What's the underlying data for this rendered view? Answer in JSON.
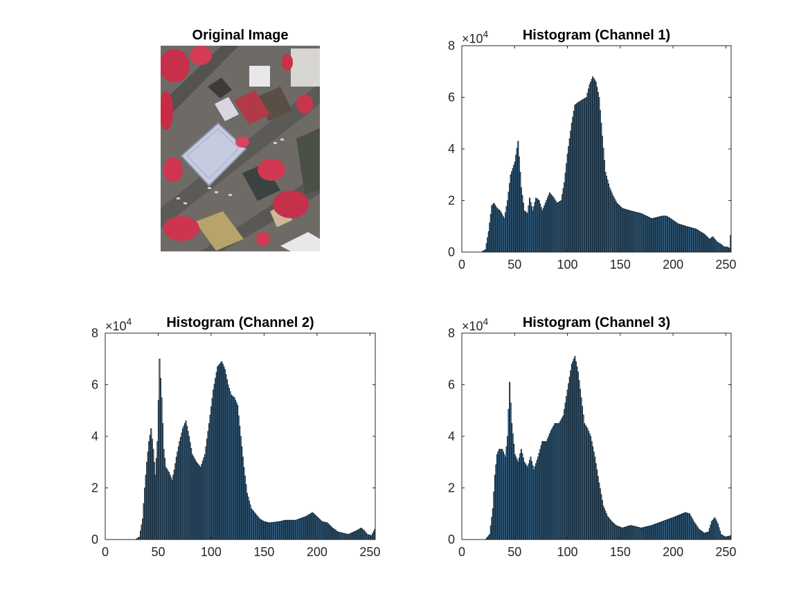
{
  "image_panel": {
    "title": "Original Image"
  },
  "chart_data": [
    {
      "type": "bar",
      "title": "Histogram (Channel 1)",
      "xlabel": "",
      "ylabel": "",
      "xlim": [
        0,
        255
      ],
      "ylim": [
        0,
        80000
      ],
      "xticks": [
        0,
        50,
        100,
        150,
        200,
        250
      ],
      "xtick_labels": [
        "0",
        "50",
        "100",
        "150",
        "200",
        "250"
      ],
      "yticks": [
        0,
        20000,
        40000,
        60000,
        80000
      ],
      "ytick_labels": [
        "0",
        "2",
        "4",
        "6",
        "8"
      ],
      "y_exponent": {
        "base": "×10",
        "power": "4"
      },
      "grid": false,
      "bar_color": "#3a6a8f",
      "edge_color": "#000000",
      "profile": [
        [
          0,
          0
        ],
        [
          18,
          0
        ],
        [
          22,
          1000
        ],
        [
          25,
          8000
        ],
        [
          28,
          18000
        ],
        [
          30,
          19000
        ],
        [
          33,
          17000
        ],
        [
          36,
          16000
        ],
        [
          40,
          13000
        ],
        [
          43,
          20000
        ],
        [
          46,
          30000
        ],
        [
          50,
          35000
        ],
        [
          53,
          43000
        ],
        [
          56,
          25000
        ],
        [
          59,
          16000
        ],
        [
          62,
          15000
        ],
        [
          64,
          21000
        ],
        [
          67,
          16000
        ],
        [
          70,
          21000
        ],
        [
          73,
          20000
        ],
        [
          76,
          16000
        ],
        [
          80,
          20000
        ],
        [
          83,
          23000
        ],
        [
          87,
          21000
        ],
        [
          90,
          19000
        ],
        [
          94,
          20000
        ],
        [
          97,
          27000
        ],
        [
          100,
          38000
        ],
        [
          104,
          50000
        ],
        [
          107,
          57000
        ],
        [
          110,
          58000
        ],
        [
          114,
          59000
        ],
        [
          118,
          60000
        ],
        [
          121,
          65000
        ],
        [
          124,
          68000
        ],
        [
          127,
          66000
        ],
        [
          130,
          60000
        ],
        [
          133,
          45000
        ],
        [
          136,
          31000
        ],
        [
          140,
          25000
        ],
        [
          143,
          22000
        ],
        [
          147,
          19000
        ],
        [
          152,
          17000
        ],
        [
          160,
          16000
        ],
        [
          170,
          15000
        ],
        [
          180,
          13000
        ],
        [
          190,
          14000
        ],
        [
          194,
          14000
        ],
        [
          198,
          13000
        ],
        [
          205,
          11000
        ],
        [
          213,
          10000
        ],
        [
          222,
          9000
        ],
        [
          230,
          7000
        ],
        [
          235,
          5000
        ],
        [
          238,
          6000
        ],
        [
          242,
          4000
        ],
        [
          246,
          3000
        ],
        [
          249,
          2000
        ],
        [
          252,
          2000
        ],
        [
          254,
          1500
        ],
        [
          255,
          6500
        ]
      ]
    },
    {
      "type": "bar",
      "title": "Histogram (Channel 2)",
      "xlabel": "",
      "ylabel": "",
      "xlim": [
        0,
        255
      ],
      "ylim": [
        0,
        80000
      ],
      "xticks": [
        0,
        50,
        100,
        150,
        200,
        250
      ],
      "xtick_labels": [
        "0",
        "50",
        "100",
        "150",
        "200",
        "250"
      ],
      "yticks": [
        0,
        20000,
        40000,
        60000,
        80000
      ],
      "ytick_labels": [
        "0",
        "2",
        "4",
        "6",
        "8"
      ],
      "y_exponent": {
        "base": "×10",
        "power": "4"
      },
      "grid": false,
      "bar_color": "#3a6a8f",
      "edge_color": "#000000",
      "profile": [
        [
          0,
          0
        ],
        [
          28,
          0
        ],
        [
          32,
          1000
        ],
        [
          35,
          8000
        ],
        [
          37,
          20000
        ],
        [
          39,
          30000
        ],
        [
          41,
          38000
        ],
        [
          43,
          43000
        ],
        [
          45,
          35000
        ],
        [
          47,
          25000
        ],
        [
          49,
          38000
        ],
        [
          51,
          70000
        ],
        [
          53,
          55000
        ],
        [
          55,
          35000
        ],
        [
          57,
          28000
        ],
        [
          60,
          26000
        ],
        [
          63,
          23000
        ],
        [
          65,
          27000
        ],
        [
          67,
          32000
        ],
        [
          70,
          38000
        ],
        [
          73,
          43000
        ],
        [
          76,
          46000
        ],
        [
          79,
          40000
        ],
        [
          82,
          33000
        ],
        [
          86,
          30000
        ],
        [
          90,
          28000
        ],
        [
          94,
          33000
        ],
        [
          98,
          45000
        ],
        [
          102,
          58000
        ],
        [
          106,
          67000
        ],
        [
          110,
          69000
        ],
        [
          113,
          66000
        ],
        [
          116,
          60000
        ],
        [
          119,
          56000
        ],
        [
          122,
          55000
        ],
        [
          125,
          52000
        ],
        [
          128,
          40000
        ],
        [
          131,
          28000
        ],
        [
          134,
          18000
        ],
        [
          138,
          12000
        ],
        [
          142,
          10000
        ],
        [
          146,
          8000
        ],
        [
          150,
          7000
        ],
        [
          155,
          6500
        ],
        [
          165,
          7000
        ],
        [
          170,
          7500
        ],
        [
          180,
          7500
        ],
        [
          190,
          9000
        ],
        [
          196,
          10500
        ],
        [
          200,
          9000
        ],
        [
          205,
          7000
        ],
        [
          210,
          6500
        ],
        [
          215,
          4500
        ],
        [
          220,
          3000
        ],
        [
          230,
          2000
        ],
        [
          238,
          3500
        ],
        [
          242,
          4500
        ],
        [
          245,
          3500
        ],
        [
          248,
          2000
        ],
        [
          252,
          1500
        ],
        [
          255,
          4000
        ]
      ]
    },
    {
      "type": "bar",
      "title": "Histogram (Channel 3)",
      "xlabel": "",
      "ylabel": "",
      "xlim": [
        0,
        255
      ],
      "ylim": [
        0,
        80000
      ],
      "xticks": [
        0,
        50,
        100,
        150,
        200,
        250
      ],
      "xtick_labels": [
        "0",
        "50",
        "100",
        "150",
        "200",
        "250"
      ],
      "yticks": [
        0,
        20000,
        40000,
        60000,
        80000
      ],
      "ytick_labels": [
        "0",
        "2",
        "4",
        "6",
        "8"
      ],
      "y_exponent": {
        "base": "×10",
        "power": "4"
      },
      "grid": false,
      "bar_color": "#3a6a8f",
      "edge_color": "#000000",
      "profile": [
        [
          0,
          0
        ],
        [
          22,
          0
        ],
        [
          26,
          2000
        ],
        [
          29,
          12000
        ],
        [
          31,
          25000
        ],
        [
          33,
          33000
        ],
        [
          35,
          35000
        ],
        [
          38,
          35000
        ],
        [
          41,
          32000
        ],
        [
          43,
          40000
        ],
        [
          45,
          61000
        ],
        [
          47,
          45000
        ],
        [
          50,
          33000
        ],
        [
          53,
          30000
        ],
        [
          56,
          35000
        ],
        [
          59,
          30000
        ],
        [
          62,
          28000
        ],
        [
          65,
          32000
        ],
        [
          68,
          27000
        ],
        [
          72,
          32000
        ],
        [
          76,
          38000
        ],
        [
          80,
          38000
        ],
        [
          84,
          42000
        ],
        [
          88,
          45000
        ],
        [
          92,
          45000
        ],
        [
          96,
          48000
        ],
        [
          100,
          58000
        ],
        [
          104,
          68000
        ],
        [
          107,
          71000
        ],
        [
          110,
          65000
        ],
        [
          113,
          55000
        ],
        [
          116,
          45000
        ],
        [
          119,
          43000
        ],
        [
          122,
          40000
        ],
        [
          126,
          32000
        ],
        [
          130,
          22000
        ],
        [
          134,
          13000
        ],
        [
          138,
          9000
        ],
        [
          142,
          7000
        ],
        [
          146,
          5500
        ],
        [
          152,
          4500
        ],
        [
          160,
          5500
        ],
        [
          165,
          5000
        ],
        [
          170,
          4500
        ],
        [
          180,
          5500
        ],
        [
          190,
          7000
        ],
        [
          200,
          8500
        ],
        [
          206,
          9500
        ],
        [
          212,
          10500
        ],
        [
          216,
          10000
        ],
        [
          220,
          7000
        ],
        [
          225,
          4000
        ],
        [
          230,
          2500
        ],
        [
          234,
          3000
        ],
        [
          237,
          7000
        ],
        [
          240,
          8500
        ],
        [
          243,
          6000
        ],
        [
          246,
          2000
        ],
        [
          250,
          1000
        ],
        [
          255,
          1500
        ]
      ]
    }
  ]
}
